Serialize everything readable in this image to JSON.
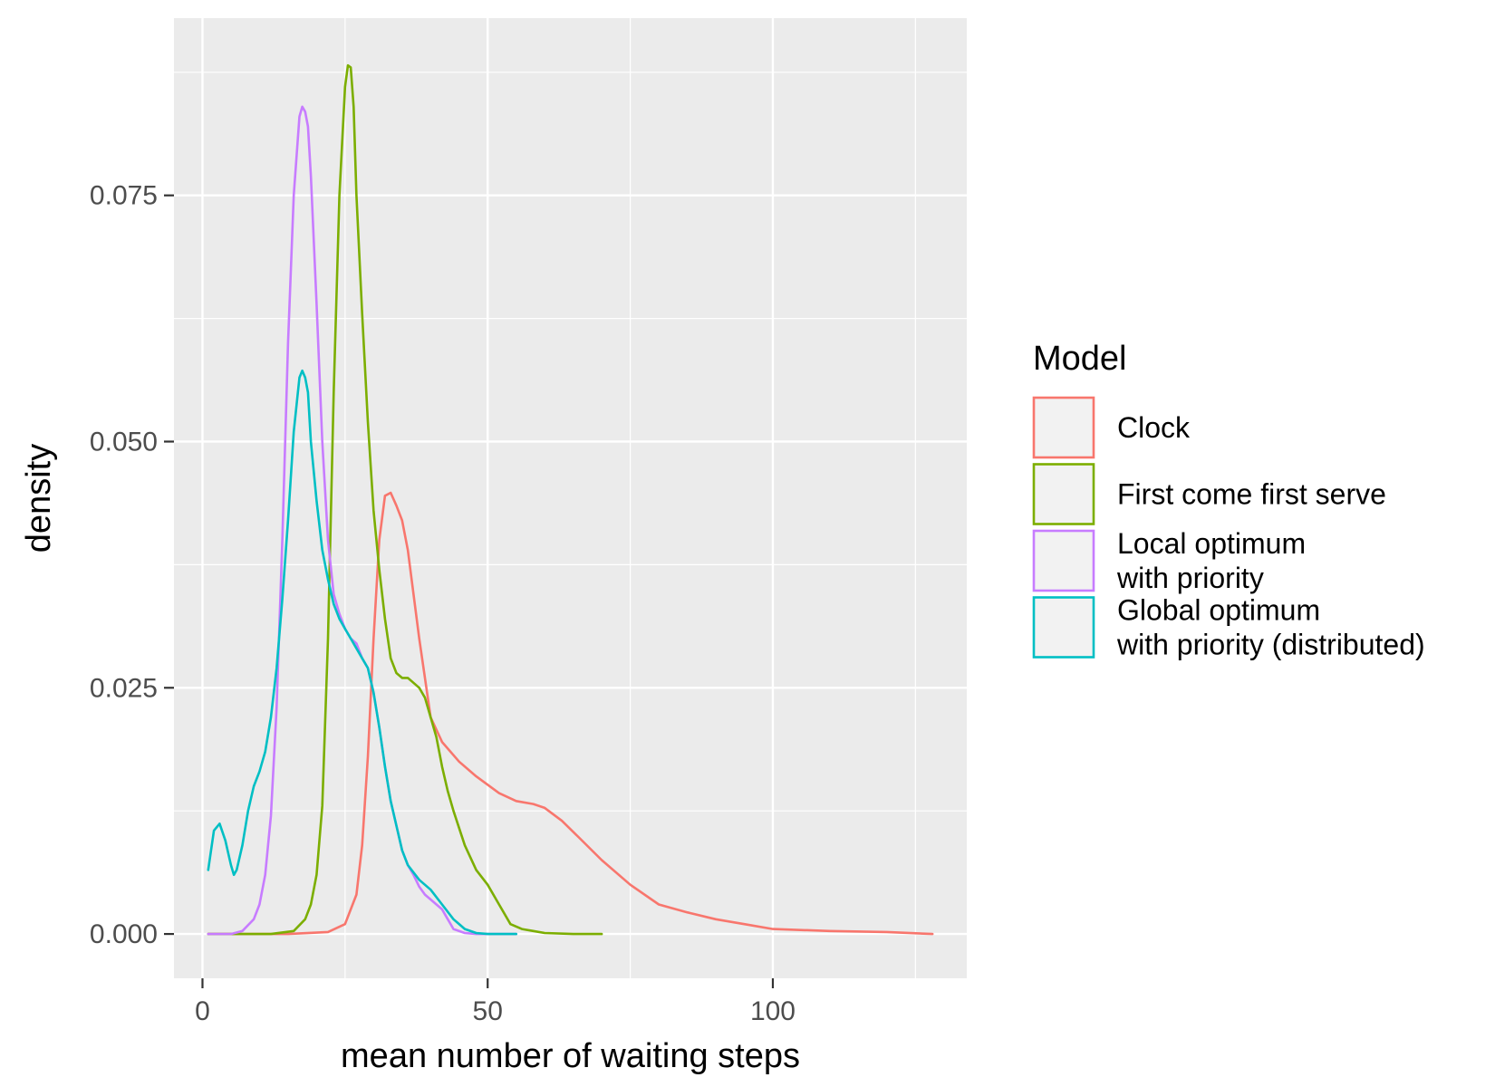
{
  "chart_data": {
    "type": "line",
    "title": "",
    "xlabel": "mean number of waiting steps",
    "ylabel": "density",
    "xlim": [
      -5,
      134
    ],
    "ylim": [
      -0.0045,
      0.093
    ],
    "x_ticks": [
      0,
      50,
      100
    ],
    "y_ticks": [
      0.0,
      0.025,
      0.05,
      0.075
    ],
    "x_tick_labels": [
      "0",
      "50",
      "100"
    ],
    "y_tick_labels": [
      "0.000",
      "0.025",
      "0.050",
      "0.075"
    ],
    "grid": true,
    "legend": {
      "title": "Model",
      "position": "right"
    },
    "series": [
      {
        "name": "Clock",
        "color": "#F8766D",
        "label_lines": [
          "Clock"
        ],
        "x": [
          1,
          15,
          22,
          25,
          27,
          28,
          29,
          30,
          31,
          32,
          33,
          34,
          35,
          36,
          38,
          40,
          42,
          45,
          48,
          52,
          55,
          58,
          60,
          63,
          66,
          70,
          75,
          80,
          85,
          90,
          95,
          100,
          110,
          120,
          128
        ],
        "y": [
          0,
          0,
          0.0002,
          0.001,
          0.004,
          0.009,
          0.018,
          0.03,
          0.04,
          0.0445,
          0.0448,
          0.0435,
          0.042,
          0.039,
          0.03,
          0.022,
          0.0195,
          0.0175,
          0.016,
          0.0143,
          0.0135,
          0.0132,
          0.0128,
          0.0115,
          0.0098,
          0.0075,
          0.005,
          0.003,
          0.0022,
          0.0015,
          0.001,
          0.0005,
          0.0003,
          0.0002,
          0
        ]
      },
      {
        "name": "First come first serve",
        "color": "#7CAE00",
        "label_lines": [
          "First come first serve"
        ],
        "x": [
          1,
          12,
          16,
          18,
          19,
          20,
          21,
          22,
          23,
          24,
          25,
          25.5,
          26,
          26.5,
          27,
          28,
          29,
          30,
          31,
          32,
          33,
          34,
          35,
          36,
          37,
          38,
          39,
          40,
          41,
          42,
          43,
          44,
          46,
          48,
          50,
          52,
          54,
          56,
          58,
          60,
          65,
          70
        ],
        "y": [
          0,
          0,
          0.0003,
          0.0015,
          0.003,
          0.006,
          0.013,
          0.03,
          0.055,
          0.075,
          0.086,
          0.0882,
          0.088,
          0.084,
          0.075,
          0.063,
          0.052,
          0.043,
          0.037,
          0.032,
          0.028,
          0.0265,
          0.026,
          0.026,
          0.0255,
          0.025,
          0.024,
          0.022,
          0.02,
          0.017,
          0.0145,
          0.0125,
          0.009,
          0.0065,
          0.005,
          0.003,
          0.001,
          0.0005,
          0.0003,
          0.0001,
          0,
          0
        ]
      },
      {
        "name": "Local optimum with priority",
        "color": "#C77CFF",
        "label_lines": [
          "Local optimum",
          "with priority"
        ],
        "x": [
          1,
          5,
          7,
          9,
          10,
          11,
          12,
          13,
          14,
          15,
          16,
          17,
          17.5,
          18,
          18.5,
          19,
          20,
          21,
          22,
          23,
          24,
          25,
          26,
          27,
          28,
          29,
          30,
          31,
          32,
          33,
          34,
          35,
          36,
          37,
          38,
          39,
          40,
          42,
          43,
          44,
          46,
          48,
          50,
          55
        ],
        "y": [
          0,
          0,
          0.0003,
          0.0015,
          0.003,
          0.006,
          0.012,
          0.023,
          0.04,
          0.06,
          0.075,
          0.083,
          0.084,
          0.0835,
          0.082,
          0.077,
          0.064,
          0.05,
          0.04,
          0.0345,
          0.0325,
          0.031,
          0.03,
          0.0295,
          0.028,
          0.027,
          0.0245,
          0.021,
          0.017,
          0.0135,
          0.011,
          0.0085,
          0.007,
          0.006,
          0.0048,
          0.004,
          0.0035,
          0.0025,
          0.0015,
          0.0005,
          0.0001,
          0,
          0,
          0
        ]
      },
      {
        "name": "Global optimum with priority (distributed)",
        "color": "#00BFC4",
        "label_lines": [
          "Global optimum",
          "with priority (distributed)"
        ],
        "x": [
          1,
          2,
          3,
          4,
          5,
          5.5,
          6,
          7,
          8,
          9,
          10,
          11,
          12,
          13,
          14,
          15,
          16,
          17,
          17.5,
          18,
          18.5,
          19,
          20,
          21,
          22,
          23,
          24,
          25,
          26,
          27,
          28,
          29,
          30,
          31,
          32,
          33,
          34,
          35,
          36,
          38,
          40,
          42,
          44,
          46,
          48,
          50,
          55
        ],
        "y": [
          0.0065,
          0.0105,
          0.0112,
          0.0095,
          0.007,
          0.006,
          0.0065,
          0.009,
          0.0125,
          0.015,
          0.0165,
          0.0185,
          0.022,
          0.027,
          0.034,
          0.042,
          0.051,
          0.0565,
          0.0572,
          0.0565,
          0.055,
          0.05,
          0.044,
          0.039,
          0.036,
          0.0335,
          0.032,
          0.031,
          0.03,
          0.029,
          0.028,
          0.027,
          0.0245,
          0.021,
          0.017,
          0.0135,
          0.011,
          0.0085,
          0.007,
          0.0055,
          0.0045,
          0.003,
          0.0015,
          0.0005,
          0.0001,
          0,
          0
        ]
      }
    ]
  }
}
